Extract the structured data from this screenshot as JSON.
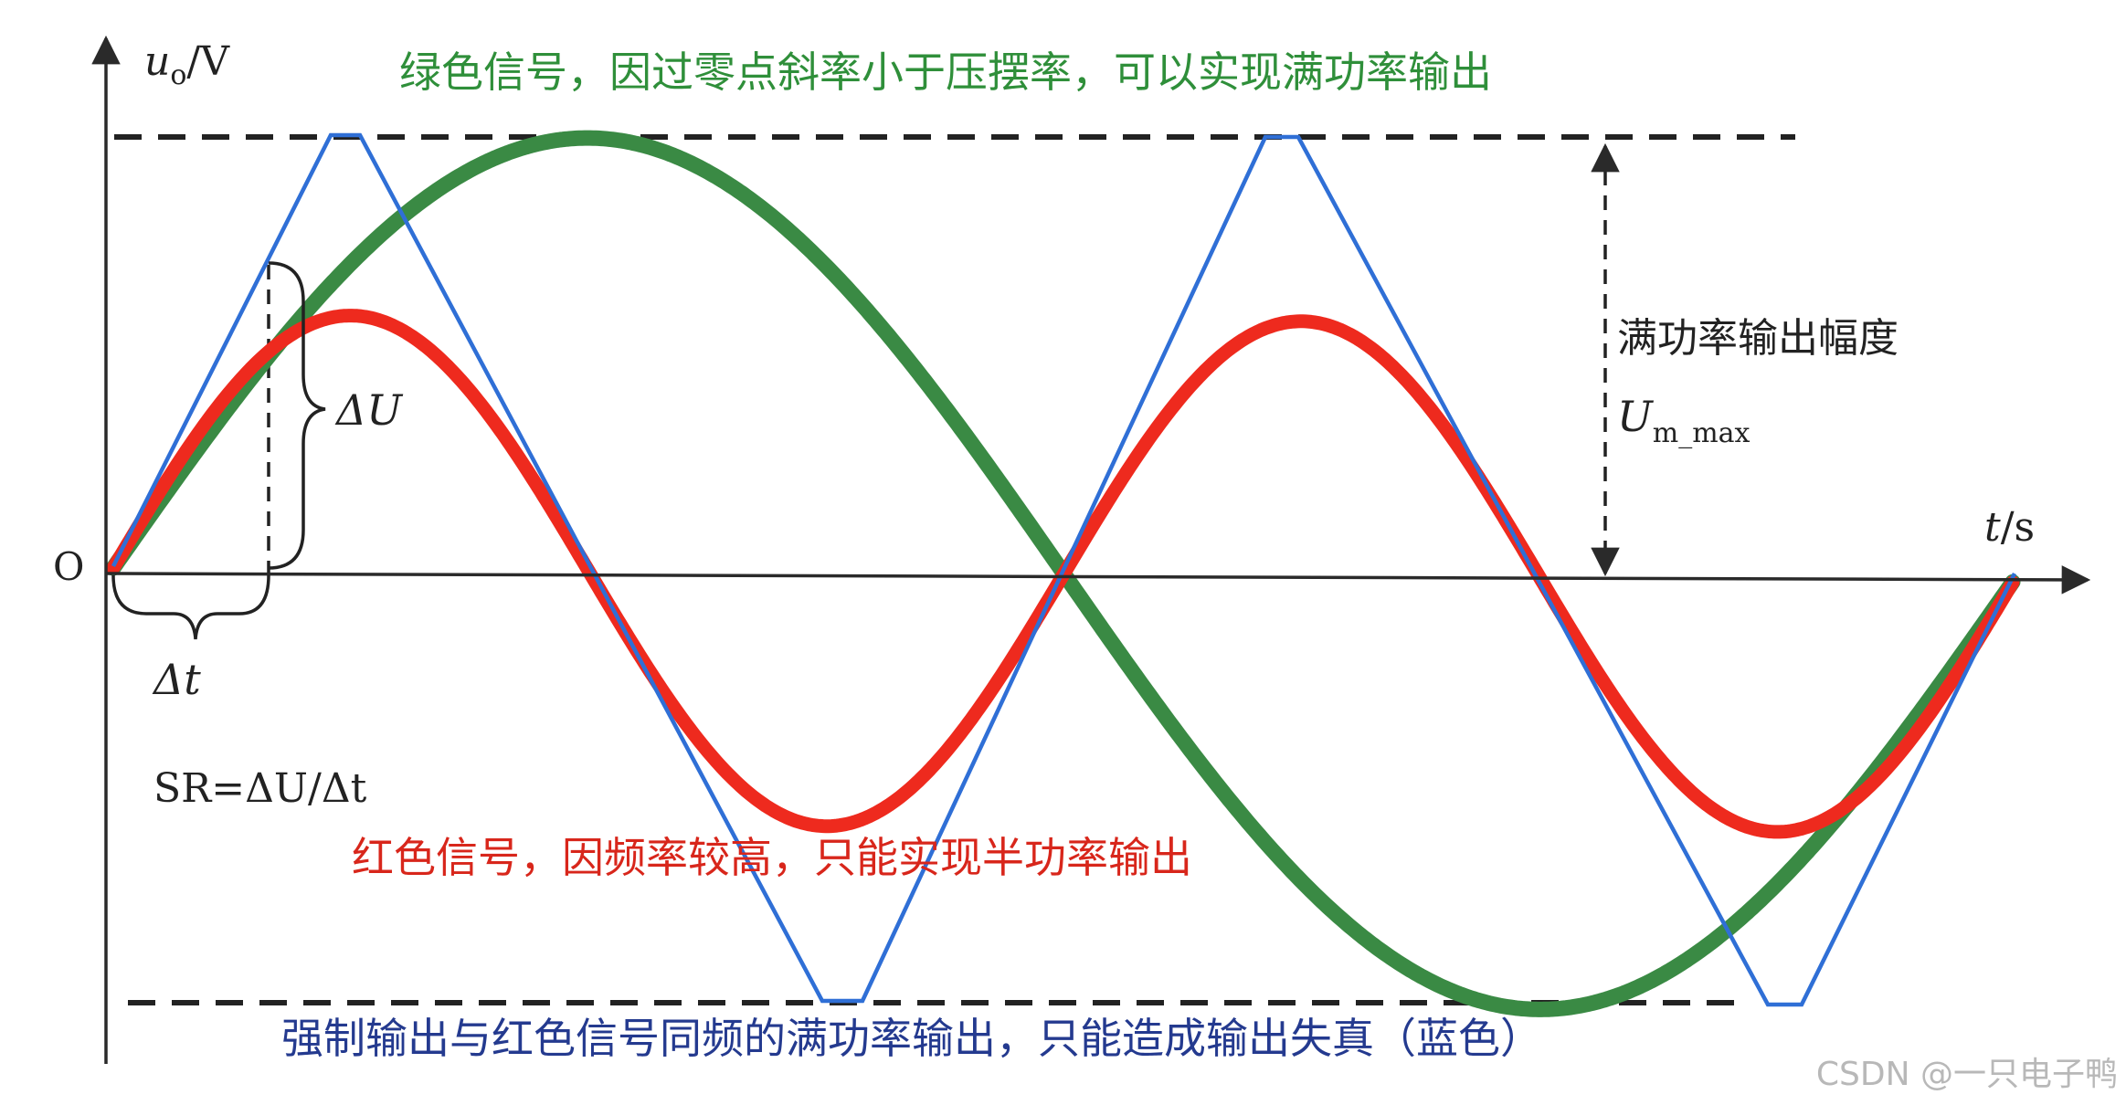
{
  "axes": {
    "y_var": "u",
    "y_sub": "o",
    "y_unit": "/V",
    "x_var": "t",
    "x_unit": "/s",
    "origin": "O"
  },
  "annotations": {
    "green_note": "绿色信号，因过零点斜率小于压摆率，可以实现满功率输出",
    "red_note": "红色信号，因频率较高，只能实现半功率输出",
    "blue_note": "强制输出与红色信号同频的满功率输出，只能造成输出失真（蓝色）",
    "amplitude_label": "满功率输出幅度",
    "amp_symbol": "U",
    "amp_sub": "m_max",
    "delta_u": "ΔU",
    "delta_t": "Δt",
    "sr_formula": "SR=ΔU/Δt"
  },
  "watermark": "CSDN @一只电子鸭",
  "colors": {
    "green": "#3a8a44",
    "red": "#ee2a1e",
    "blue": "#2f6fd6",
    "axis": "#2a2a2a",
    "green_text": "#2f8f3a",
    "red_text": "#d8261b",
    "blue_text": "#243a8f"
  }
}
